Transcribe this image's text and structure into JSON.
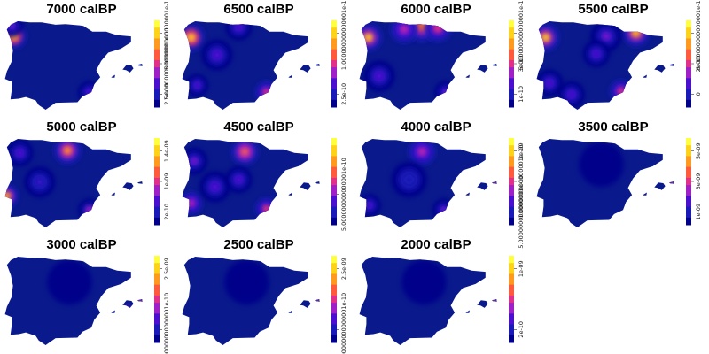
{
  "figure": {
    "panels": [
      {
        "title": "7000 calBP",
        "legend_labels": [
          "2.5e-10",
          "1.000000000000001e-11",
          "5.000000000000001e-11"
        ],
        "hotspots": [
          {
            "lon": -8.6,
            "lat": 42.4,
            "intensity": 1.0,
            "spread": 0.55
          },
          {
            "lon": -8.8,
            "lat": 43.3,
            "intensity": 0.35,
            "spread": 0.5
          },
          {
            "lon": -1.0,
            "lat": 37.6,
            "intensity": 0.28,
            "spread": 0.5
          }
        ]
      },
      {
        "title": "6500 calBP",
        "legend_labels": [
          "2.5e-10",
          "1.000000000000001e-11"
        ],
        "hotspots": [
          {
            "lon": -8.6,
            "lat": 42.3,
            "intensity": 1.0,
            "spread": 0.6
          },
          {
            "lon": -1.0,
            "lat": 37.6,
            "intensity": 0.55,
            "spread": 0.5
          },
          {
            "lon": -3.8,
            "lat": 43.2,
            "intensity": 0.3,
            "spread": 0.6
          },
          {
            "lon": -6.0,
            "lat": 40.8,
            "intensity": 0.25,
            "spread": 0.7
          },
          {
            "lon": -8.0,
            "lat": 38.2,
            "intensity": 0.3,
            "spread": 0.5
          }
        ]
      },
      {
        "title": "6000 calBP",
        "legend_labels": [
          "1e-10",
          "3e-10",
          "5.000000000000001e-10"
        ],
        "hotspots": [
          {
            "lon": -8.6,
            "lat": 42.3,
            "intensity": 0.95,
            "spread": 0.6
          },
          {
            "lon": -3.2,
            "lat": 43.3,
            "intensity": 0.75,
            "spread": 0.7
          },
          {
            "lon": -1.6,
            "lat": 43.1,
            "intensity": 0.55,
            "spread": 0.6
          },
          {
            "lon": -5.0,
            "lat": 43.0,
            "intensity": 0.45,
            "spread": 0.6
          },
          {
            "lon": -7.5,
            "lat": 39.0,
            "intensity": 0.3,
            "spread": 0.7
          },
          {
            "lon": -0.8,
            "lat": 37.6,
            "intensity": 0.35,
            "spread": 0.5
          }
        ]
      },
      {
        "title": "5500 calBP",
        "legend_labels": [
          "0",
          "2e-10",
          "6.000000000000001e-10"
        ],
        "hotspots": [
          {
            "lon": -8.6,
            "lat": 42.3,
            "intensity": 0.95,
            "spread": 0.6
          },
          {
            "lon": 0.5,
            "lat": 42.7,
            "intensity": 0.9,
            "spread": 0.6
          },
          {
            "lon": -2.5,
            "lat": 42.4,
            "intensity": 0.35,
            "spread": 0.7
          },
          {
            "lon": -3.5,
            "lat": 40.9,
            "intensity": 0.3,
            "spread": 0.6
          },
          {
            "lon": -1.0,
            "lat": 37.7,
            "intensity": 0.55,
            "spread": 0.5
          },
          {
            "lon": -8.2,
            "lat": 38.4,
            "intensity": 0.3,
            "spread": 0.6
          },
          {
            "lon": -6.0,
            "lat": 37.4,
            "intensity": 0.3,
            "spread": 0.6
          }
        ]
      },
      {
        "title": "5000 calBP",
        "legend_labels": [
          "2e-10",
          "1e-09",
          "1.4e-09"
        ],
        "hotspots": [
          {
            "lon": -3.2,
            "lat": 42.7,
            "intensity": 0.85,
            "spread": 0.6
          },
          {
            "lon": -9.3,
            "lat": 38.8,
            "intensity": 0.9,
            "spread": 0.5
          },
          {
            "lon": -1.0,
            "lat": 37.6,
            "intensity": 0.4,
            "spread": 0.5
          },
          {
            "lon": -6.0,
            "lat": 40.0,
            "intensity": 0.2,
            "spread": 0.7
          },
          {
            "lon": -8.0,
            "lat": 42.5,
            "intensity": 0.25,
            "spread": 0.6
          }
        ]
      },
      {
        "title": "4500 calBP",
        "legend_labels": [
          "5.000000000000001e-10"
        ],
        "hotspots": [
          {
            "lon": -3.2,
            "lat": 42.6,
            "intensity": 0.7,
            "spread": 0.6
          },
          {
            "lon": -1.0,
            "lat": 37.7,
            "intensity": 0.6,
            "spread": 0.5
          },
          {
            "lon": -8.6,
            "lat": 38.2,
            "intensity": 0.5,
            "spread": 0.5
          },
          {
            "lon": -6.2,
            "lat": 39.6,
            "intensity": 0.3,
            "spread": 0.7
          },
          {
            "lon": -3.8,
            "lat": 40.2,
            "intensity": 0.25,
            "spread": 0.6
          },
          {
            "lon": -8.3,
            "lat": 41.8,
            "intensity": 0.35,
            "spread": 0.6
          }
        ]
      },
      {
        "title": "4000 calBP",
        "legend_labels": [
          "5.000000000000001e-10",
          "1.000000000000001e-10",
          "2e-09"
        ],
        "hotspots": [
          {
            "lon": -3.2,
            "lat": 42.6,
            "intensity": 0.45,
            "spread": 0.6
          },
          {
            "lon": -1.0,
            "lat": 37.6,
            "intensity": 0.35,
            "spread": 0.5
          },
          {
            "lon": -8.5,
            "lat": 38.0,
            "intensity": 0.3,
            "spread": 0.5
          },
          {
            "lon": -4.5,
            "lat": 40.2,
            "intensity": 0.15,
            "spread": 0.8
          },
          {
            "lon": 4.1,
            "lat": 39.9,
            "intensity": 0.9,
            "spread": 0.18
          }
        ]
      },
      {
        "title": "3500 calBP",
        "legend_labels": [
          "1e-09",
          "3e-09",
          "5e-09"
        ],
        "hotspots": [
          {
            "lon": 4.1,
            "lat": 39.9,
            "intensity": 0.95,
            "spread": 0.18
          },
          {
            "lon": -3.0,
            "lat": 41.5,
            "intensity": 0.06,
            "spread": 1.0
          }
        ]
      },
      {
        "title": "3000 calBP",
        "legend_labels": [
          "1.000000000000001e-10",
          "2.5e-09"
        ],
        "hotspots": [
          {
            "lon": 4.1,
            "lat": 39.9,
            "intensity": 0.9,
            "spread": 0.18
          },
          {
            "lon": 2.9,
            "lat": 39.4,
            "intensity": 0.6,
            "spread": 0.12
          },
          {
            "lon": -3.0,
            "lat": 41.5,
            "intensity": 0.06,
            "spread": 1.0
          }
        ]
      },
      {
        "title": "2500 calBP",
        "legend_labels": [
          "1.000000000000001e-10",
          "2.5e-09"
        ],
        "hotspots": [
          {
            "lon": 4.1,
            "lat": 39.9,
            "intensity": 0.9,
            "spread": 0.18
          },
          {
            "lon": -3.0,
            "lat": 41.5,
            "intensity": 0.06,
            "spread": 1.0
          }
        ]
      },
      {
        "title": "2000 calBP",
        "legend_labels": [
          "2e-10",
          "1e-09"
        ],
        "hotspots": [
          {
            "lon": 4.1,
            "lat": 39.9,
            "intensity": 0.9,
            "spread": 0.18
          },
          {
            "lon": -3.0,
            "lat": 41.5,
            "intensity": 0.06,
            "spread": 1.0
          }
        ]
      }
    ],
    "colormap": [
      "#00008b",
      "#1a1ab8",
      "#4b0fd0",
      "#a020c8",
      "#e0308a",
      "#ff5a3c",
      "#ff9a1e",
      "#ffd21a",
      "#ffff40"
    ],
    "base_color": "#0a1a8c"
  }
}
